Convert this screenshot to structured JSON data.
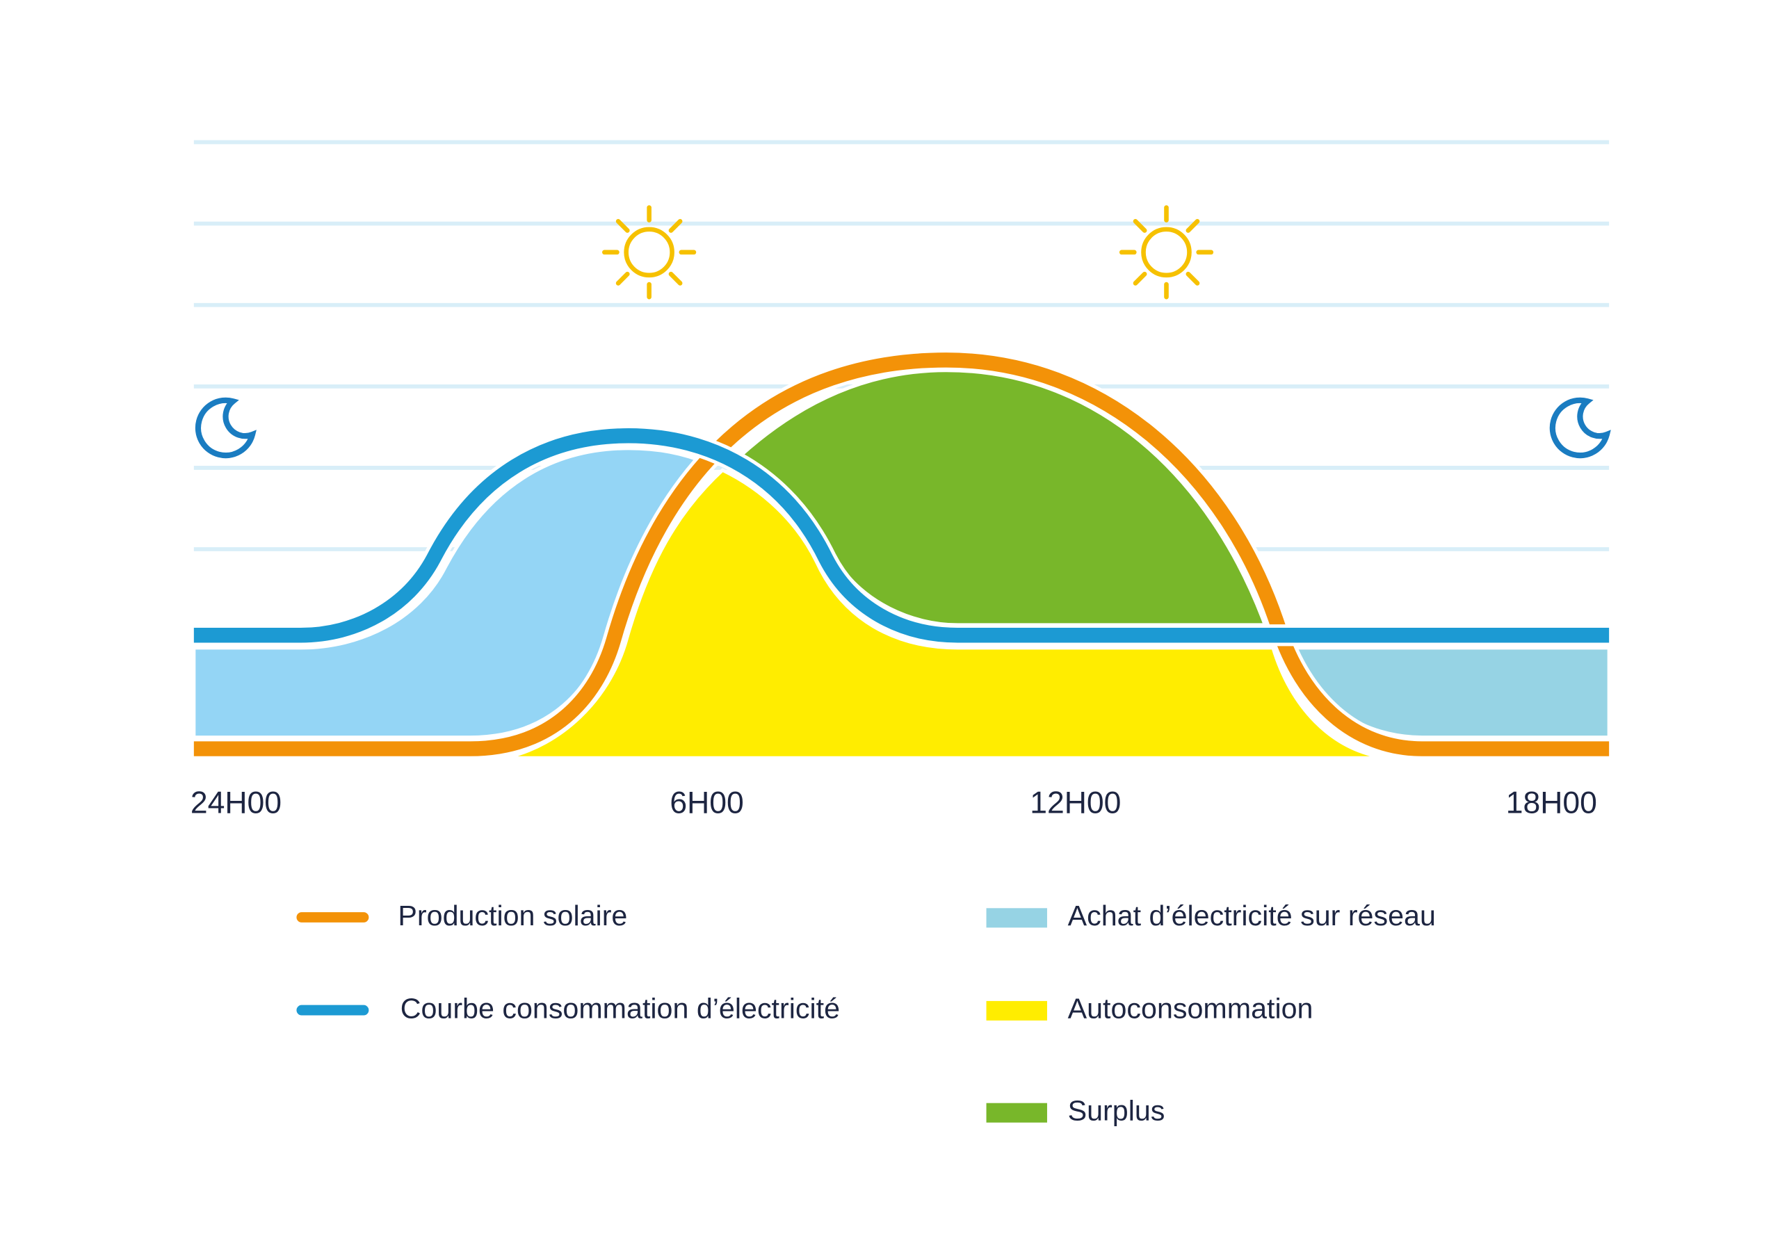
{
  "axis": {
    "ticks": [
      "24H00",
      "6H00",
      "12H00",
      "18H00"
    ]
  },
  "legend": {
    "items": [
      {
        "label": "Production solaire",
        "kind": "line",
        "color": "#f39208"
      },
      {
        "label": "Courbe consommation d’électricité",
        "kind": "line",
        "color": "#1c9ad3"
      },
      {
        "label": "Achat d’électricité sur réseau",
        "kind": "area",
        "color": "#96d3e4"
      },
      {
        "label": "Autoconsommation",
        "kind": "area",
        "color": "#ffed00"
      },
      {
        "label": "Surplus",
        "kind": "area",
        "color": "#78b72a"
      }
    ]
  },
  "colors": {
    "grid": "#d8eef8",
    "production": "#f39208",
    "consumption": "#1c9ad3",
    "grid_purchase_left": "#94d5f5",
    "grid_purchase_right": "#96d3e4",
    "self_consumption": "#ffed00",
    "surplus": "#78b72a",
    "sun": "#f6c100",
    "moon": "#1a7cc1",
    "text": "#1d2541"
  },
  "icons": [
    "moon-icon",
    "sun-icon",
    "sun-icon",
    "moon-icon"
  ]
}
